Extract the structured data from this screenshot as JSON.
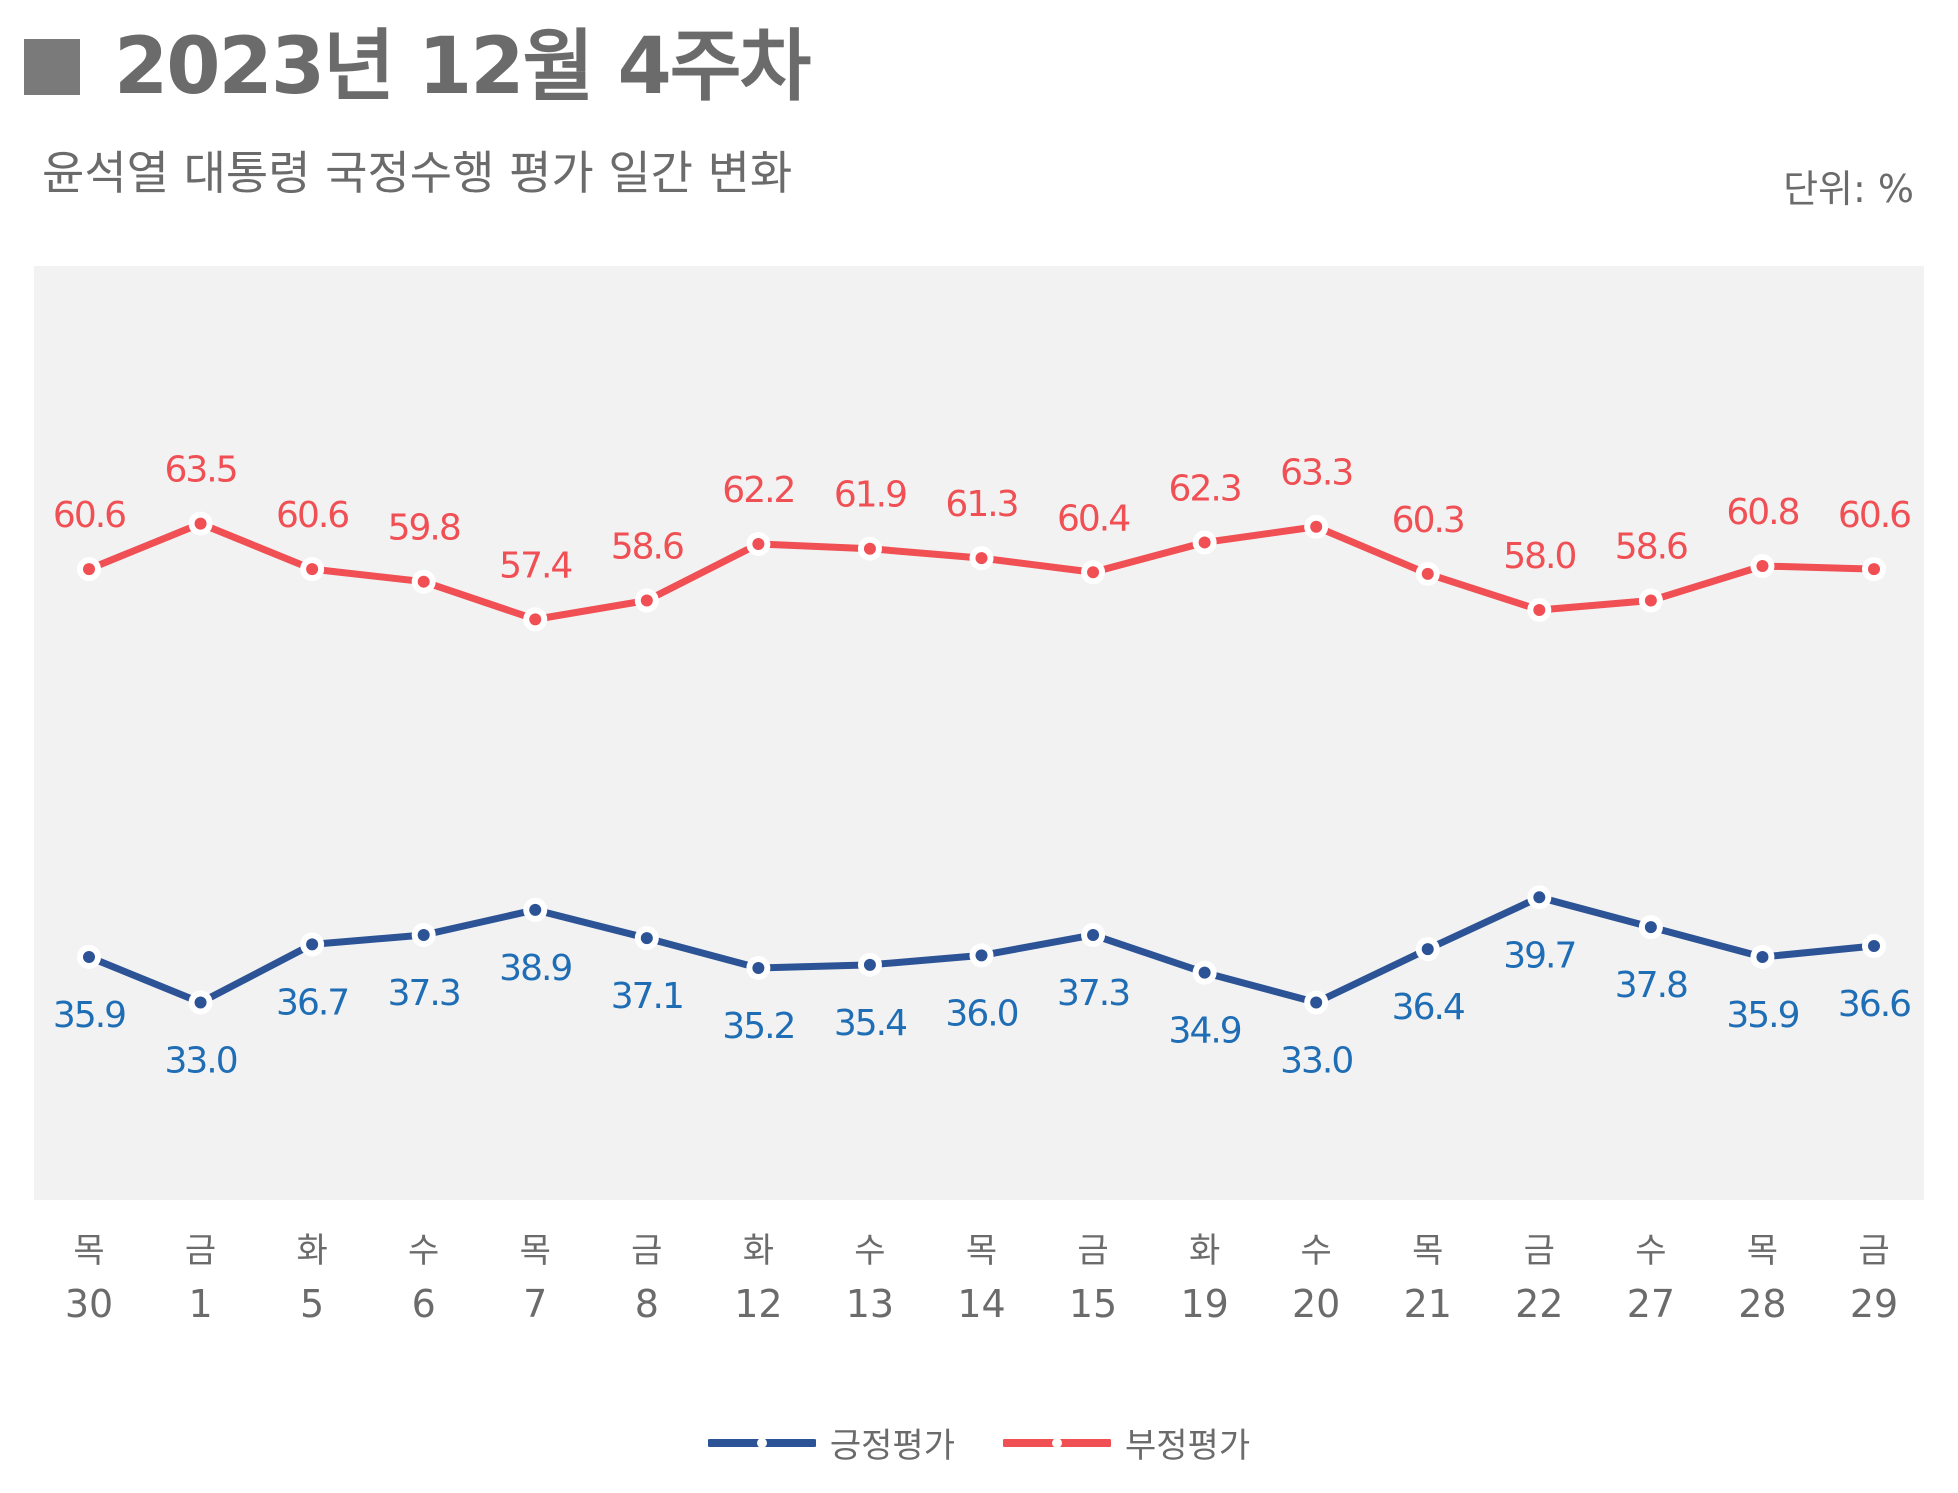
{
  "title": "2023년 12월 4주차",
  "subtitle": "윤석열 대통령 국정수행 평가 일간 변화",
  "unit": "단위: %",
  "colors": {
    "positive": "#2c5395",
    "positive_label": "#1f6db5",
    "negative": "#f04f54",
    "negative_label": "#f04f54",
    "plot_bg": "#f2f2f2",
    "axis_text": "#6b6b6b"
  },
  "chart_data": {
    "type": "line",
    "weekdays": [
      "목",
      "금",
      "화",
      "수",
      "목",
      "금",
      "화",
      "수",
      "목",
      "금",
      "화",
      "수",
      "목",
      "금",
      "수",
      "목",
      "금"
    ],
    "days": [
      "30",
      "1",
      "5",
      "6",
      "7",
      "8",
      "12",
      "13",
      "14",
      "15",
      "19",
      "20",
      "21",
      "22",
      "27",
      "28",
      "29"
    ],
    "series": [
      {
        "name": "긍정평가",
        "key": "positive",
        "values": [
          35.9,
          33.0,
          36.7,
          37.3,
          38.9,
          37.1,
          35.2,
          35.4,
          36.0,
          37.3,
          34.9,
          33.0,
          36.4,
          39.7,
          37.8,
          35.9,
          36.6
        ],
        "labels": [
          "35.9",
          "33.0",
          "36.7",
          "37.3",
          "38.9",
          "37.1",
          "35.2",
          "35.4",
          "36.0",
          "37.3",
          "34.9",
          "33.0",
          "36.4",
          "39.7",
          "37.8",
          "35.9",
          "36.6"
        ]
      },
      {
        "name": "부정평가",
        "key": "negative",
        "values": [
          60.6,
          63.5,
          60.6,
          59.8,
          57.4,
          58.6,
          62.2,
          61.9,
          61.3,
          60.4,
          62.3,
          63.3,
          60.3,
          58.0,
          58.6,
          60.8,
          60.6
        ],
        "labels": [
          "60.6",
          "63.5",
          "60.6",
          "59.8",
          "57.4",
          "58.6",
          "62.2",
          "61.9",
          "61.3",
          "60.4",
          "62.3",
          "63.3",
          "60.3",
          "58.0",
          "58.6",
          "60.8",
          "60.6"
        ]
      }
    ],
    "legend": {
      "position": "bottom"
    }
  }
}
